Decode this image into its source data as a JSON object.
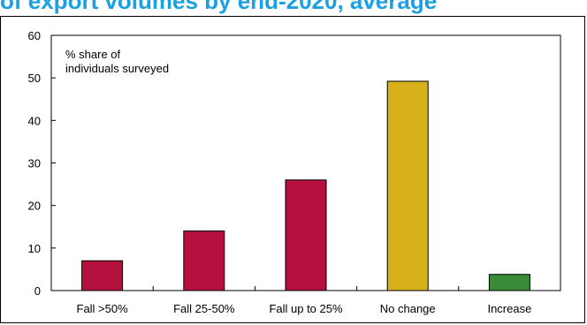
{
  "title": "of export volumes by end-2020, average",
  "chart_data": {
    "type": "bar",
    "categories": [
      "Fall >50%",
      "Fall 25-50%",
      "Fall up to 25%",
      "No change",
      "Increase"
    ],
    "values": [
      7,
      14,
      26,
      49.2,
      3.8
    ],
    "colors": [
      "#b5103e",
      "#b5103e",
      "#b5103e",
      "#d7b11c",
      "#3a8a3a"
    ],
    "annotation": [
      "%  share of",
      "individuals surveyed"
    ],
    "ylim": [
      0,
      60
    ],
    "yticks": [
      "0",
      "10",
      "20",
      "30",
      "40",
      "50",
      "60"
    ],
    "grid": false,
    "legend": "none"
  }
}
